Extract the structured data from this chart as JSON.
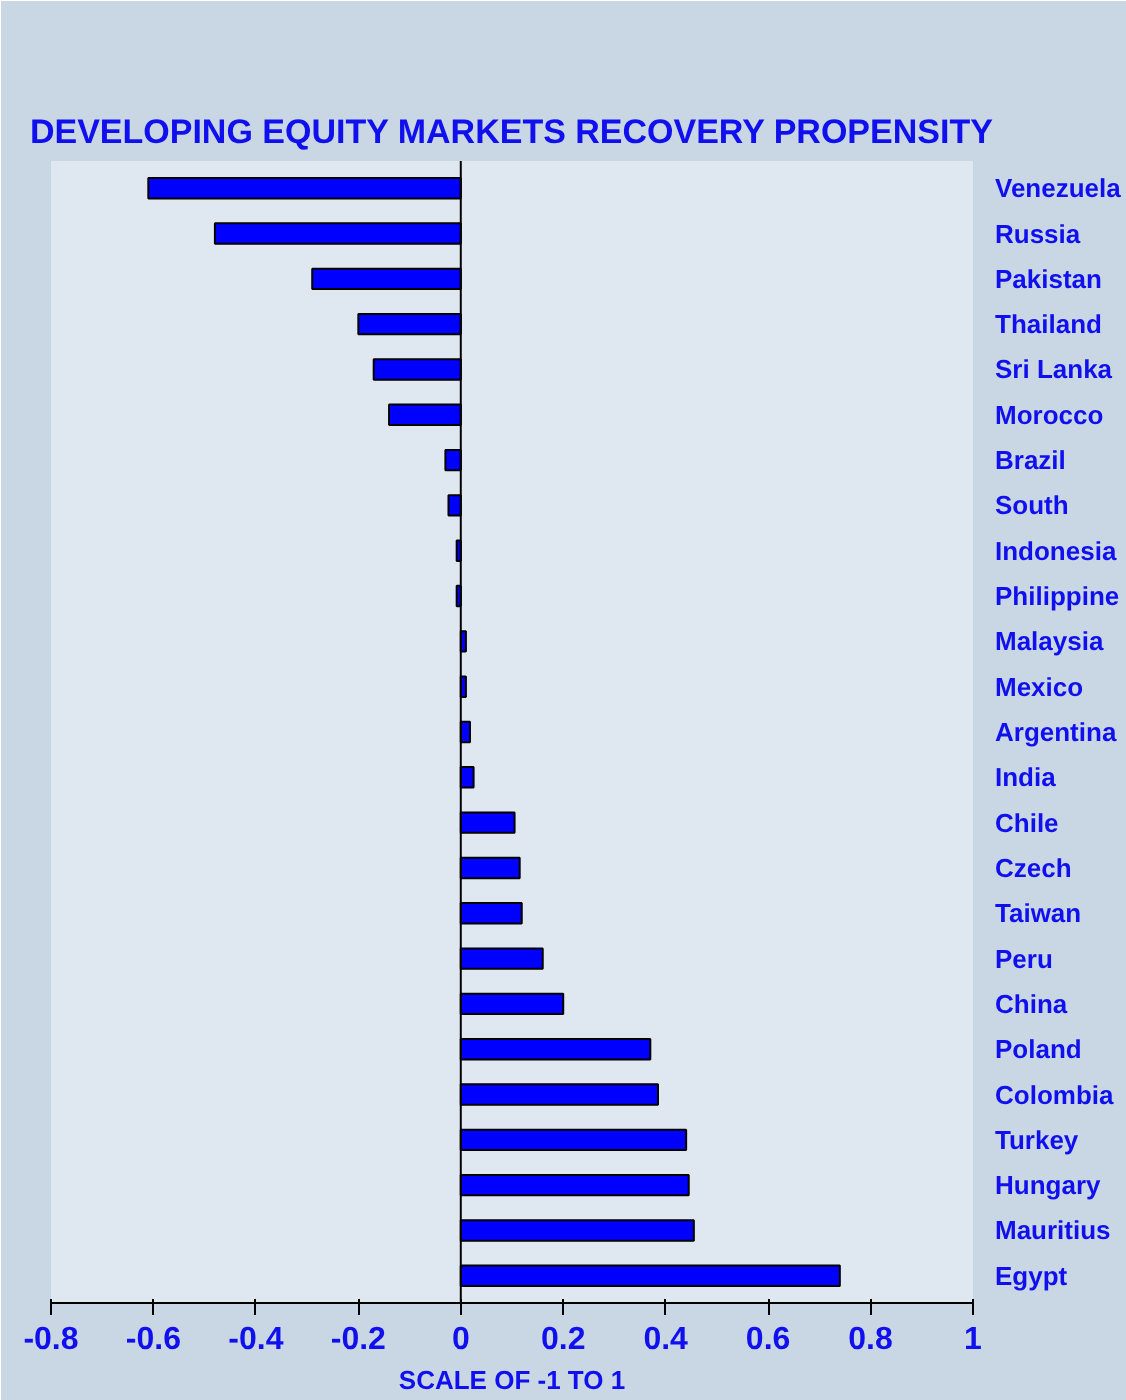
{
  "chart_data": {
    "type": "bar",
    "orientation": "horizontal",
    "title": "DEVELOPING EQUITY MARKETS RECOVERY PROPENSITY",
    "xlabel": "SCALE OF -1 TO 1",
    "categories": [
      "Venezuela",
      "Russia",
      "Pakistan",
      "Thailand",
      "Sri Lanka",
      "Morocco",
      "Brazil",
      "South",
      "Indonesia",
      "Philippine",
      "Malaysia",
      "Mexico",
      "Argentina",
      "India",
      "Chile",
      "Czech",
      "Taiwan",
      "Peru",
      "China",
      "Poland",
      "Colombia",
      "Turkey",
      "Hungary",
      "Mauritius",
      "Egypt"
    ],
    "values": [
      -0.61,
      -0.48,
      -0.29,
      -0.2,
      -0.17,
      -0.14,
      -0.03,
      -0.024,
      -0.008,
      -0.008,
      0.01,
      0.01,
      0.018,
      0.025,
      0.105,
      0.115,
      0.119,
      0.16,
      0.2,
      0.37,
      0.385,
      0.44,
      0.445,
      0.455,
      0.74
    ],
    "color": "#0000ff",
    "xlim": [
      -0.8,
      1
    ],
    "xticks": [
      -0.8,
      -0.6,
      -0.4,
      -0.2,
      0,
      0.2,
      0.4,
      0.6,
      0.8,
      1
    ]
  }
}
